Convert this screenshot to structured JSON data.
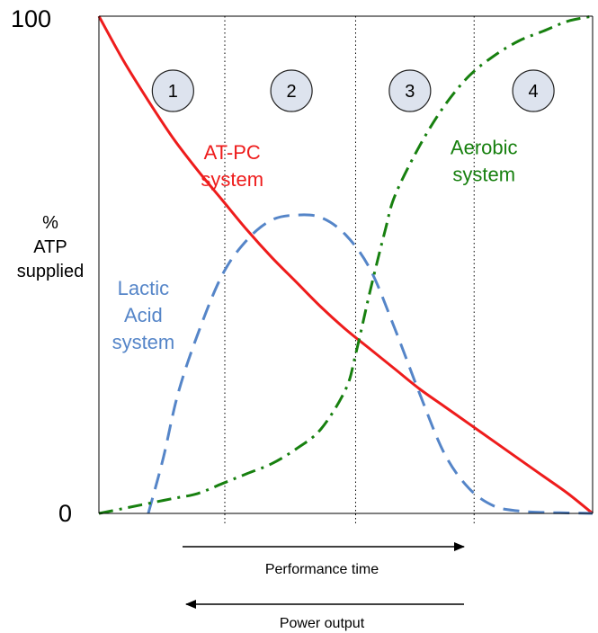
{
  "chart_data": {
    "type": "line",
    "title": "",
    "ylabel": [
      "%",
      "ATP",
      "supplied"
    ],
    "xlabel": "",
    "ylim": [
      0,
      100
    ],
    "xlim": [
      0,
      100
    ],
    "y_tick_labels": [
      "100",
      "0"
    ],
    "y_ticks": [
      100,
      0
    ],
    "phase_boundaries": [
      25.5,
      52,
      76
    ],
    "phases": [
      {
        "label": "1",
        "x": 15
      },
      {
        "label": "2",
        "x": 39
      },
      {
        "label": "3",
        "x": 63
      },
      {
        "label": "4",
        "x": 88
      }
    ],
    "grid": false,
    "legend": "none",
    "series": [
      {
        "name": "AT-PC system",
        "label_lines": [
          "AT-PC",
          "system"
        ],
        "color": "#ee1c1c",
        "style": "solid",
        "label_at": {
          "x": 27,
          "y": 70
        },
        "x": [
          0,
          5,
          10,
          15,
          20,
          25,
          30,
          35,
          40,
          45,
          50,
          55,
          60,
          65,
          70,
          75,
          80,
          85,
          90,
          95,
          100
        ],
        "y": [
          100,
          91,
          83,
          75.5,
          69,
          63,
          57,
          51.5,
          46.5,
          41.5,
          37,
          33,
          29,
          25,
          21.5,
          18,
          14.5,
          11,
          7.5,
          4,
          0
        ]
      },
      {
        "name": "Lactic Acid system",
        "label_lines": [
          "Lactic",
          "Acid",
          "system"
        ],
        "color": "#5585c8",
        "style": "dashed",
        "label_at": {
          "x": 9,
          "y": 40
        },
        "x": [
          10,
          13,
          16,
          20,
          25,
          30,
          35,
          40,
          45,
          50,
          55,
          60,
          65,
          70,
          75,
          80,
          85,
          90,
          95,
          100
        ],
        "y": [
          0,
          11,
          24,
          36,
          48,
          55,
          59,
          60,
          59.5,
          56,
          49,
          37,
          24,
          12,
          5,
          1.5,
          0.5,
          0.2,
          0.1,
          0
        ]
      },
      {
        "name": "Aerobic system",
        "label_lines": [
          "Aerobic",
          "system"
        ],
        "color": "#17800f",
        "style": "dashdot",
        "label_at": {
          "x": 78,
          "y": 71
        },
        "x": [
          0,
          5,
          10,
          15,
          20,
          25,
          30,
          35,
          40,
          45,
          50,
          52,
          55,
          58,
          60,
          65,
          70,
          75,
          80,
          85,
          90,
          95,
          100
        ],
        "y": [
          0,
          1,
          2,
          3,
          4,
          6,
          8,
          10,
          13,
          17,
          25,
          32,
          45,
          57,
          64,
          74,
          82,
          88,
          92,
          95,
          97,
          99,
          100
        ]
      }
    ],
    "arrows": [
      {
        "label": "Performance time",
        "direction": "right"
      },
      {
        "label": "Power output",
        "direction": "left"
      }
    ]
  }
}
